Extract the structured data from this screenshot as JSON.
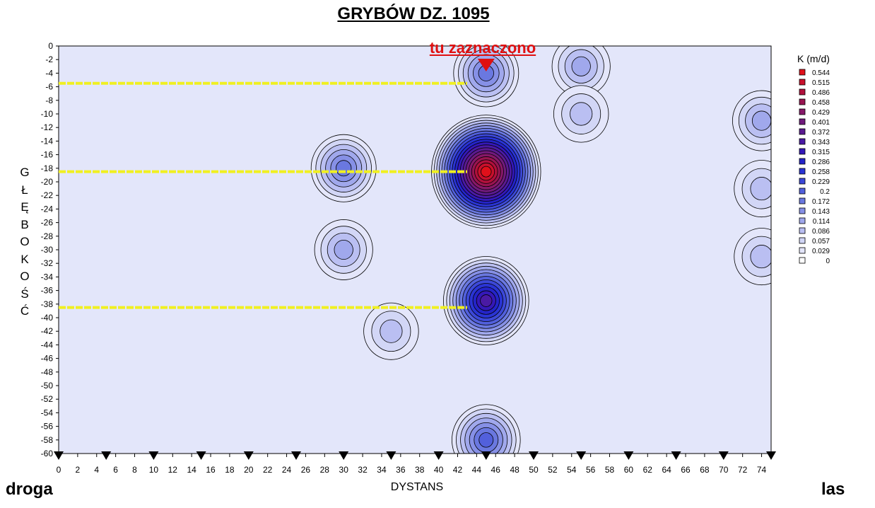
{
  "chart_data": {
    "type": "heatmap",
    "title": "GRYBÓW DZ. 1095",
    "xlabel": "DYSTANS",
    "ylabel": "GŁĘBOKOŚĆ",
    "xlim": [
      0,
      75
    ],
    "ylim": [
      -60,
      0
    ],
    "x_ticks": [
      "0",
      "2",
      "4",
      "6",
      "8",
      "10",
      "12",
      "14",
      "16",
      "18",
      "20",
      "22",
      "24",
      "26",
      "28",
      "30",
      "32",
      "34",
      "36",
      "38",
      "40",
      "42",
      "44",
      "46",
      "48",
      "50",
      "52",
      "54",
      "56",
      "58",
      "60",
      "62",
      "64",
      "66",
      "68",
      "70",
      "72",
      "74"
    ],
    "y_ticks": [
      "0",
      "-2",
      "-4",
      "-6",
      "-8",
      "-10",
      "-12",
      "-14",
      "-16",
      "-18",
      "-20",
      "-22",
      "-24",
      "-26",
      "-28",
      "-30",
      "-32",
      "-34",
      "-36",
      "-38",
      "-40",
      "-42",
      "-44",
      "-46",
      "-48",
      "-50",
      "-52",
      "-54",
      "-56",
      "-58",
      "-60"
    ],
    "colorbar": {
      "title": "K (m/d)",
      "levels": [
        "0.544",
        "0.515",
        "0.486",
        "0.458",
        "0.429",
        "0.401",
        "0.372",
        "0.343",
        "0.315",
        "0.286",
        "0.258",
        "0.229",
        "0.2",
        "0.172",
        "0.143",
        "0.114",
        "0.086",
        "0.057",
        "0.029",
        "0"
      ],
      "colors": [
        "#e0101a",
        "#c8102c",
        "#b0103c",
        "#981450",
        "#861868",
        "#701a7c",
        "#5a1a90",
        "#4a1aa4",
        "#3418b8",
        "#2424c8",
        "#2a34d4",
        "#3c48d8",
        "#5260dc",
        "#6a78e0",
        "#8690e6",
        "#a0a8ec",
        "#babff2",
        "#d2d6f6",
        "#e4e6fa",
        "#ffffff"
      ]
    },
    "anomalies": [
      {
        "x": 45,
        "y": -18.5,
        "k": 0.544
      },
      {
        "x": 45,
        "y": -37.5,
        "k": 0.343
      },
      {
        "x": 45,
        "y": -4,
        "k": 0.172
      },
      {
        "x": 45,
        "y": -58,
        "k": 0.2
      },
      {
        "x": 30,
        "y": -18,
        "k": 0.172
      },
      {
        "x": 30,
        "y": -30,
        "k": 0.114
      },
      {
        "x": 35,
        "y": -42,
        "k": 0.086
      },
      {
        "x": 55,
        "y": -3,
        "k": 0.114
      },
      {
        "x": 55,
        "y": -10,
        "k": 0.086
      },
      {
        "x": 74,
        "y": -11,
        "k": 0.114
      },
      {
        "x": 74,
        "y": -21,
        "k": 0.086
      },
      {
        "x": 74,
        "y": -31,
        "k": 0.086
      }
    ],
    "markers_x": [
      0,
      5,
      10,
      15,
      20,
      25,
      30,
      35,
      40,
      45,
      50,
      55,
      60,
      65,
      70,
      75
    ],
    "highlight_depths": [
      -5.5,
      -18.5,
      -38.5
    ],
    "annotation": {
      "text": "tu zaznaczono",
      "x": 45
    }
  },
  "labels": {
    "left_corner": "droga",
    "right_corner": "las"
  },
  "colors": {
    "background_field": "#e3e6fa",
    "highlight_line": "#f0f020",
    "annotation": "#e01010"
  }
}
